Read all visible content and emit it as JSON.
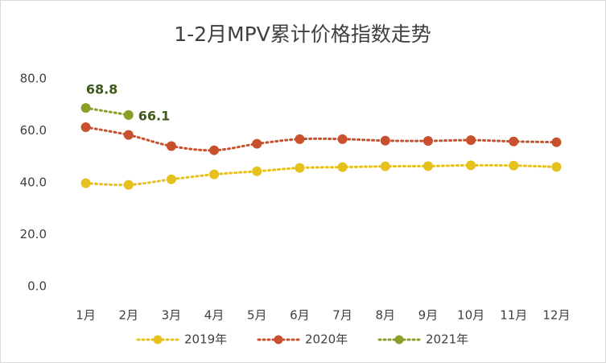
{
  "chart_data": {
    "type": "line",
    "title": "1-2月MPV累计价格指数走势",
    "categories": [
      "1月",
      "2月",
      "3月",
      "4月",
      "5月",
      "6月",
      "7月",
      "8月",
      "9月",
      "10月",
      "11月",
      "12月"
    ],
    "series": [
      {
        "name": "2019年",
        "color": "#e6c01c",
        "values": [
          39.8,
          39.2,
          41.3,
          43.2,
          44.4,
          45.7,
          46.0,
          46.3,
          46.4,
          46.7,
          46.6,
          46.1
        ]
      },
      {
        "name": "2020年",
        "color": "#c8502c",
        "values": [
          61.4,
          58.4,
          54.1,
          52.5,
          55.0,
          56.8,
          56.8,
          56.2,
          56.1,
          56.4,
          55.9,
          55.6
        ]
      },
      {
        "name": "2021年",
        "color": "#8c9e28",
        "values": [
          68.8,
          66.1,
          null,
          null,
          null,
          null,
          null,
          null,
          null,
          null,
          null,
          null
        ],
        "data_labels": true,
        "label_color": "#3f5a1c"
      }
    ],
    "ylim": [
      0,
      80
    ],
    "yticks": [
      {
        "value": 0,
        "label": "0.0"
      },
      {
        "value": 20,
        "label": "20.0"
      },
      {
        "value": 40,
        "label": "40.0"
      },
      {
        "value": 60,
        "label": "60.0"
      },
      {
        "value": 80,
        "label": "80.0"
      }
    ],
    "grid": false,
    "legend": "bottom"
  }
}
